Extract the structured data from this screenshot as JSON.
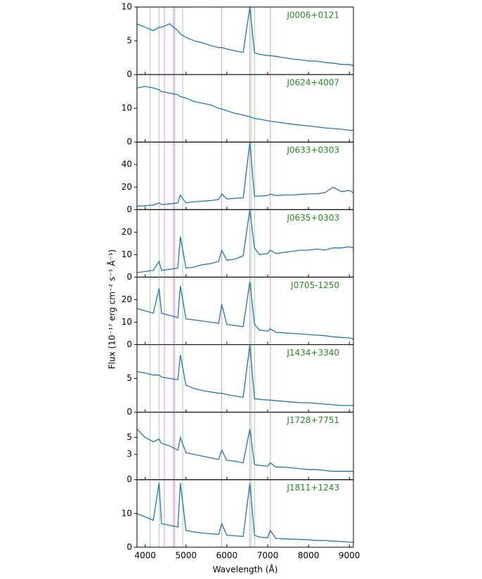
{
  "chart_data": [
    {
      "type": "line",
      "title": "J0006+0121",
      "color": "#1f77b4",
      "xlim": [
        3800,
        9100
      ],
      "xticks": [
        4000,
        5000,
        6000,
        7000,
        8000,
        9000
      ],
      "ylim": [
        0,
        10
      ],
      "yticks": [
        0,
        5,
        10
      ],
      "x": [
        3800,
        4000,
        4200,
        4340,
        4400,
        4600,
        4800,
        4861,
        5000,
        5200,
        5400,
        5600,
        5800,
        5876,
        6000,
        6200,
        6400,
        6563,
        6678,
        6800,
        7000,
        7065,
        7200,
        7400,
        7600,
        7800,
        8000,
        8200,
        8400,
        8600,
        8800,
        9000,
        9100
      ],
      "values": [
        7.5,
        7,
        6.5,
        7,
        7,
        7.5,
        6.5,
        6,
        5.5,
        5,
        4.7,
        4.3,
        4,
        4,
        3.8,
        3.5,
        3.3,
        10,
        3.2,
        3,
        2.8,
        2.8,
        2.7,
        2.5,
        2.3,
        2.2,
        2,
        2,
        1.8,
        1.7,
        1.5,
        1.5,
        1.3
      ]
    },
    {
      "type": "line",
      "title": "J0624+4007",
      "color": "#1f77b4",
      "xlim": [
        3800,
        9100
      ],
      "xticks": [
        4000,
        5000,
        6000,
        7000,
        8000,
        9000
      ],
      "ylim": [
        0,
        20
      ],
      "yticks": [
        0,
        10
      ],
      "x": [
        3800,
        4000,
        4200,
        4340,
        4400,
        4600,
        4800,
        4861,
        5000,
        5200,
        5400,
        5600,
        5800,
        5876,
        6000,
        6200,
        6400,
        6563,
        6678,
        6800,
        7000,
        7065,
        7200,
        7400,
        7600,
        7800,
        8000,
        8200,
        8400,
        8600,
        8800,
        9000,
        9100
      ],
      "values": [
        16,
        16.5,
        16,
        15.5,
        15,
        14.5,
        14,
        13.5,
        13,
        12,
        11.5,
        11,
        10,
        9.8,
        9.3,
        8.5,
        8,
        7.5,
        7,
        6.8,
        6.3,
        6.2,
        6,
        5.6,
        5.3,
        5,
        4.8,
        4.5,
        4.2,
        4,
        3.8,
        3.5,
        3.5
      ]
    },
    {
      "type": "line",
      "title": "J0633+0303",
      "color": "#1f77b4",
      "xlim": [
        3800,
        9100
      ],
      "xticks": [
        4000,
        5000,
        6000,
        7000,
        8000,
        9000
      ],
      "ylim": [
        0,
        60
      ],
      "yticks": [
        0,
        20,
        40
      ],
      "x": [
        3800,
        4000,
        4200,
        4340,
        4400,
        4600,
        4800,
        4861,
        5000,
        5200,
        5400,
        5600,
        5800,
        5876,
        6000,
        6200,
        6400,
        6563,
        6678,
        6800,
        7000,
        7065,
        7200,
        7400,
        7600,
        7800,
        8000,
        8200,
        8400,
        8600,
        8800,
        9000,
        9100
      ],
      "values": [
        3,
        3.5,
        4,
        6,
        4.5,
        5,
        6,
        13,
        6,
        7,
        7.5,
        8,
        9,
        14,
        9.5,
        10,
        10.5,
        60,
        12,
        12,
        12.5,
        14,
        12.5,
        13,
        13,
        13.5,
        14,
        14,
        15,
        20,
        16,
        17,
        15
      ]
    },
    {
      "type": "line",
      "title": "J0635+0303",
      "color": "#1f77b4",
      "xlim": [
        3800,
        9100
      ],
      "xticks": [
        4000,
        5000,
        6000,
        7000,
        8000,
        9000
      ],
      "ylim": [
        0,
        30
      ],
      "yticks": [
        0,
        10,
        20
      ],
      "x": [
        3800,
        4000,
        4200,
        4340,
        4400,
        4600,
        4800,
        4861,
        5000,
        5200,
        5400,
        5600,
        5800,
        5876,
        6000,
        6200,
        6400,
        6563,
        6678,
        6800,
        7000,
        7065,
        7200,
        7400,
        7600,
        7800,
        8000,
        8200,
        8400,
        8600,
        8800,
        9000,
        9100
      ],
      "values": [
        2,
        2.5,
        3,
        7,
        3,
        3.5,
        4,
        18,
        4,
        4.5,
        5.5,
        6,
        7,
        12,
        7.5,
        8,
        9.5,
        30,
        13,
        10,
        10.5,
        12,
        10.5,
        11,
        11.5,
        12,
        12,
        12.5,
        12,
        13,
        13,
        13.5,
        13
      ]
    },
    {
      "type": "line",
      "title": "J0705-1250",
      "color": "#1f77b4",
      "xlim": [
        3800,
        9100
      ],
      "xticks": [
        4000,
        5000,
        6000,
        7000,
        8000,
        9000
      ],
      "ylim": [
        0,
        30
      ],
      "yticks": [
        0,
        10,
        20
      ],
      "x": [
        3800,
        4000,
        4200,
        4340,
        4400,
        4600,
        4800,
        4861,
        5000,
        5200,
        5400,
        5600,
        5800,
        5876,
        6000,
        6200,
        6400,
        6563,
        6678,
        6800,
        7000,
        7065,
        7200,
        7400,
        7600,
        7800,
        8000,
        8200,
        8400,
        8600,
        8800,
        9000,
        9100
      ],
      "values": [
        16,
        15,
        14,
        25,
        14,
        13,
        12,
        26,
        11.5,
        11,
        10.5,
        10,
        9.5,
        18,
        9,
        8.5,
        8,
        28,
        9,
        6.5,
        6,
        7,
        5.5,
        5.2,
        5,
        4.8,
        4.5,
        4.2,
        4,
        3.5,
        3.2,
        3,
        2.5
      ]
    },
    {
      "type": "line",
      "title": "J1434+3340",
      "color": "#1f77b4",
      "xlim": [
        3800,
        9100
      ],
      "xticks": [
        4000,
        5000,
        6000,
        7000,
        8000,
        9000
      ],
      "ylim": [
        0,
        10
      ],
      "yticks": [
        0,
        5
      ],
      "x": [
        3800,
        4000,
        4200,
        4340,
        4400,
        4600,
        4800,
        4861,
        5000,
        5200,
        5400,
        5600,
        5800,
        5876,
        6000,
        6200,
        6400,
        6563,
        6678,
        6800,
        7000,
        7065,
        7200,
        7400,
        7600,
        7800,
        8000,
        8200,
        8400,
        8600,
        8800,
        9000,
        9100
      ],
      "values": [
        6,
        5.8,
        5.5,
        5.5,
        5.2,
        5,
        4.8,
        8.5,
        4,
        3.5,
        3.2,
        3,
        2.8,
        2.8,
        2.6,
        2.4,
        2.2,
        10,
        2,
        1.9,
        1.8,
        1.8,
        1.7,
        1.6,
        1.5,
        1.4,
        1.4,
        1.3,
        1.2,
        1.1,
        1,
        1,
        1
      ]
    },
    {
      "type": "line",
      "title": "J1728+7751",
      "color": "#1f77b4",
      "xlim": [
        3800,
        9100
      ],
      "xticks": [
        4000,
        5000,
        6000,
        7000,
        8000,
        9000
      ],
      "ylim": [
        0,
        8
      ],
      "yticks": [
        0,
        3,
        5
      ],
      "x": [
        3800,
        4000,
        4200,
        4340,
        4400,
        4600,
        4800,
        4861,
        5000,
        5200,
        5400,
        5600,
        5800,
        5876,
        6000,
        6200,
        6400,
        6563,
        6678,
        6800,
        7000,
        7065,
        7200,
        7400,
        7600,
        7800,
        8000,
        8200,
        8400,
        8600,
        8800,
        9000,
        9100
      ],
      "values": [
        6,
        5,
        4.5,
        4.8,
        4.3,
        4,
        3.5,
        5,
        3.2,
        3,
        2.8,
        2.6,
        2.4,
        3.5,
        2.3,
        2.2,
        2,
        6,
        1.8,
        1.7,
        1.6,
        2,
        1.5,
        1.5,
        1.4,
        1.3,
        1.2,
        1.2,
        1.1,
        1,
        1,
        1,
        1
      ]
    },
    {
      "type": "line",
      "title": "J1811+1243",
      "color": "#1f77b4",
      "xlim": [
        3800,
        9100
      ],
      "xticks": [
        4000,
        5000,
        6000,
        7000,
        8000,
        9000
      ],
      "ylim": [
        0,
        20
      ],
      "yticks": [
        0,
        10
      ],
      "xlabel": "Wavelength (Å)",
      "x": [
        3800,
        4000,
        4200,
        4340,
        4400,
        4600,
        4800,
        4861,
        5000,
        5200,
        5400,
        5600,
        5800,
        5876,
        6000,
        6200,
        6400,
        6563,
        6678,
        6800,
        7000,
        7065,
        7200,
        7400,
        7600,
        7800,
        8000,
        8200,
        8400,
        8600,
        8800,
        9000,
        9100
      ],
      "values": [
        10,
        9,
        8,
        19,
        7,
        6.5,
        6,
        19,
        5,
        4.5,
        4.2,
        4,
        3.8,
        7,
        3.6,
        3.4,
        3.2,
        19,
        3.5,
        3,
        2.8,
        5,
        2.6,
        2.5,
        2.4,
        2.3,
        2.2,
        2,
        2,
        1.8,
        1.7,
        1.5,
        1.5
      ]
    }
  ],
  "ylabel": "Flux (10⁻¹⁷ erg cm⁻² s⁻¹ Å⁻¹)",
  "title_color": "#228b22",
  "reference_lines": [
    {
      "color": "#98e098",
      "x": [
        4120,
        4340,
        4920,
        6600,
        6680
      ]
    },
    {
      "color": "#d89ad8",
      "x": [
        4470,
        4690,
        4720,
        5876,
        6560,
        7065
      ]
    }
  ]
}
